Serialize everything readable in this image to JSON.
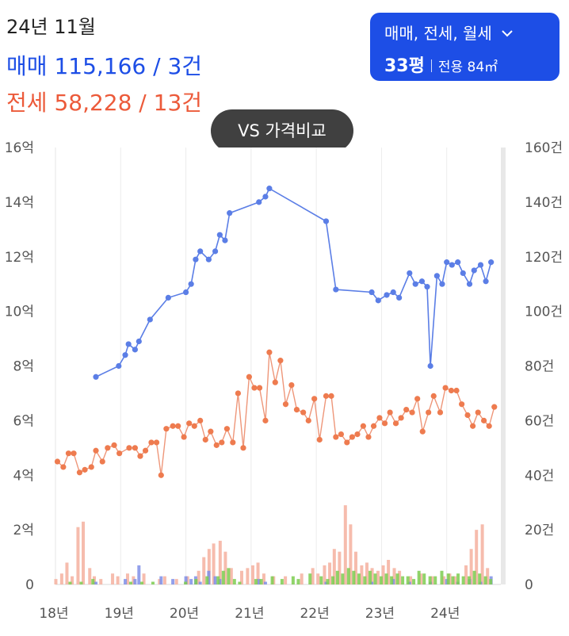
{
  "header": {
    "period": "24년 11월",
    "sale_label": "매매",
    "sale_value": "115,166 / 3건",
    "jeonse_label": "전세",
    "jeonse_value": "58,228 / 13건"
  },
  "filter": {
    "types": "매매, 전세, 월세",
    "size": "33평",
    "exclusive": "전용 84㎡",
    "icon": "chevron-down-icon"
  },
  "compare_button": {
    "label": "VS 가격비교"
  },
  "colors": {
    "sale": "#5b7ee6",
    "jeonse": "#ee9679",
    "jeonse_dot": "#ee7b4f",
    "sale_volume": "#7f8fe8",
    "jeonse_volume": "#f5b5a4",
    "rent_volume": "#7ccc50"
  },
  "chart_data": {
    "type": "line",
    "x_tick_labels": [
      "18년",
      "19년",
      "20년",
      "21년",
      "22년",
      "23년",
      "24년"
    ],
    "x_range": [
      2018.0,
      2024.83
    ],
    "y_left_ticks": [
      "0",
      "2억",
      "4억",
      "6억",
      "8억",
      "10억",
      "12억",
      "14억",
      "16억"
    ],
    "y_left_range": [
      0,
      16
    ],
    "y_right_ticks": [
      "0",
      "20건",
      "40건",
      "60건",
      "80건",
      "100건",
      "120건",
      "140건",
      "160건"
    ],
    "y_right_range": [
      0,
      160
    ],
    "series": [
      {
        "key": "sale",
        "unit": "억",
        "points": [
          [
            2018.62,
            7.6
          ],
          [
            2018.97,
            8.0
          ],
          [
            2019.07,
            8.4
          ],
          [
            2019.12,
            8.8
          ],
          [
            2019.22,
            8.6
          ],
          [
            2019.28,
            8.9
          ],
          [
            2019.45,
            9.7
          ],
          [
            2019.73,
            10.5
          ],
          [
            2020.0,
            10.7
          ],
          [
            2020.08,
            11.0
          ],
          [
            2020.15,
            11.9
          ],
          [
            2020.22,
            12.2
          ],
          [
            2020.35,
            11.9
          ],
          [
            2020.45,
            12.2
          ],
          [
            2020.52,
            12.8
          ],
          [
            2020.6,
            12.6
          ],
          [
            2020.67,
            13.6
          ],
          [
            2021.12,
            14.0
          ],
          [
            2021.22,
            14.2
          ],
          [
            2021.28,
            14.5
          ],
          [
            2022.15,
            13.3
          ],
          [
            2022.3,
            10.8
          ],
          [
            2022.85,
            10.7
          ],
          [
            2022.95,
            10.4
          ],
          [
            2023.08,
            10.6
          ],
          [
            2023.18,
            10.7
          ],
          [
            2023.27,
            10.5
          ],
          [
            2023.43,
            11.4
          ],
          [
            2023.52,
            11.0
          ],
          [
            2023.62,
            11.1
          ],
          [
            2023.7,
            10.9
          ],
          [
            2023.75,
            8.0
          ],
          [
            2023.85,
            11.3
          ],
          [
            2023.93,
            11.0
          ],
          [
            2024.0,
            11.8
          ],
          [
            2024.08,
            11.7
          ],
          [
            2024.17,
            11.8
          ],
          [
            2024.25,
            11.4
          ],
          [
            2024.35,
            11.0
          ],
          [
            2024.42,
            11.5
          ],
          [
            2024.52,
            11.7
          ],
          [
            2024.6,
            11.1
          ],
          [
            2024.68,
            11.8
          ]
        ]
      },
      {
        "key": "jeonse",
        "unit": "억",
        "points": [
          [
            2018.03,
            4.5
          ],
          [
            2018.12,
            4.3
          ],
          [
            2018.2,
            4.8
          ],
          [
            2018.28,
            4.8
          ],
          [
            2018.37,
            4.1
          ],
          [
            2018.45,
            4.2
          ],
          [
            2018.55,
            4.3
          ],
          [
            2018.62,
            4.9
          ],
          [
            2018.72,
            4.5
          ],
          [
            2018.8,
            5.0
          ],
          [
            2018.9,
            5.1
          ],
          [
            2018.98,
            4.8
          ],
          [
            2019.13,
            5.0
          ],
          [
            2019.22,
            5.0
          ],
          [
            2019.3,
            4.7
          ],
          [
            2019.38,
            4.9
          ],
          [
            2019.47,
            5.2
          ],
          [
            2019.55,
            5.2
          ],
          [
            2019.62,
            4.0
          ],
          [
            2019.7,
            5.7
          ],
          [
            2019.8,
            5.8
          ],
          [
            2019.88,
            5.8
          ],
          [
            2019.97,
            5.4
          ],
          [
            2020.05,
            5.9
          ],
          [
            2020.13,
            5.8
          ],
          [
            2020.22,
            6.0
          ],
          [
            2020.3,
            5.3
          ],
          [
            2020.38,
            5.6
          ],
          [
            2020.47,
            5.1
          ],
          [
            2020.55,
            5.2
          ],
          [
            2020.63,
            5.7
          ],
          [
            2020.72,
            5.2
          ],
          [
            2020.8,
            7.0
          ],
          [
            2020.88,
            5.0
          ],
          [
            2020.97,
            7.6
          ],
          [
            2021.05,
            7.2
          ],
          [
            2021.13,
            7.2
          ],
          [
            2021.22,
            6.0
          ],
          [
            2021.28,
            8.5
          ],
          [
            2021.37,
            7.4
          ],
          [
            2021.45,
            8.2
          ],
          [
            2021.53,
            6.6
          ],
          [
            2021.62,
            7.3
          ],
          [
            2021.7,
            6.4
          ],
          [
            2021.8,
            6.3
          ],
          [
            2021.88,
            6.0
          ],
          [
            2021.97,
            6.8
          ],
          [
            2022.05,
            5.3
          ],
          [
            2022.15,
            6.9
          ],
          [
            2022.23,
            6.9
          ],
          [
            2022.3,
            5.4
          ],
          [
            2022.38,
            5.5
          ],
          [
            2022.47,
            5.2
          ],
          [
            2022.55,
            5.4
          ],
          [
            2022.63,
            5.5
          ],
          [
            2022.72,
            5.8
          ],
          [
            2022.8,
            5.4
          ],
          [
            2022.88,
            5.8
          ],
          [
            2022.97,
            6.1
          ],
          [
            2023.05,
            5.9
          ],
          [
            2023.13,
            6.3
          ],
          [
            2023.22,
            5.9
          ],
          [
            2023.3,
            6.1
          ],
          [
            2023.38,
            6.4
          ],
          [
            2023.47,
            6.3
          ],
          [
            2023.55,
            6.8
          ],
          [
            2023.63,
            5.6
          ],
          [
            2023.72,
            6.3
          ],
          [
            2023.8,
            6.9
          ],
          [
            2023.9,
            6.3
          ],
          [
            2023.98,
            7.2
          ],
          [
            2024.07,
            7.1
          ],
          [
            2024.15,
            7.1
          ],
          [
            2024.23,
            6.6
          ],
          [
            2024.32,
            6.2
          ],
          [
            2024.4,
            5.8
          ],
          [
            2024.48,
            6.3
          ],
          [
            2024.57,
            6.0
          ],
          [
            2024.65,
            5.8
          ],
          [
            2024.73,
            6.5
          ]
        ]
      }
    ],
    "volume_series": [
      {
        "key": "jeonse_volume",
        "unit": "건",
        "points": [
          [
            2018.03,
            2
          ],
          [
            2018.12,
            4
          ],
          [
            2018.2,
            8
          ],
          [
            2018.28,
            3
          ],
          [
            2018.37,
            21
          ],
          [
            2018.45,
            23
          ],
          [
            2018.55,
            6
          ],
          [
            2018.62,
            3
          ],
          [
            2018.72,
            2
          ],
          [
            2018.9,
            4
          ],
          [
            2018.98,
            3
          ],
          [
            2019.13,
            4
          ],
          [
            2019.22,
            3
          ],
          [
            2019.38,
            4
          ],
          [
            2019.62,
            2
          ],
          [
            2019.7,
            3
          ],
          [
            2019.88,
            2
          ],
          [
            2020.05,
            3
          ],
          [
            2020.22,
            5
          ],
          [
            2020.3,
            10
          ],
          [
            2020.38,
            13
          ],
          [
            2020.45,
            15
          ],
          [
            2020.55,
            16
          ],
          [
            2020.63,
            12
          ],
          [
            2020.72,
            6
          ],
          [
            2020.88,
            5
          ],
          [
            2020.97,
            6
          ],
          [
            2021.05,
            7
          ],
          [
            2021.13,
            8
          ],
          [
            2021.22,
            4
          ],
          [
            2021.37,
            3
          ],
          [
            2021.55,
            3
          ],
          [
            2021.8,
            4
          ],
          [
            2021.97,
            6
          ],
          [
            2022.05,
            4
          ],
          [
            2022.15,
            7
          ],
          [
            2022.23,
            8
          ],
          [
            2022.3,
            13
          ],
          [
            2022.38,
            12
          ],
          [
            2022.47,
            29
          ],
          [
            2022.55,
            22
          ],
          [
            2022.63,
            12
          ],
          [
            2022.72,
            7
          ],
          [
            2022.8,
            8
          ],
          [
            2022.88,
            6
          ],
          [
            2022.97,
            5
          ],
          [
            2023.05,
            7
          ],
          [
            2023.13,
            9
          ],
          [
            2023.22,
            6
          ],
          [
            2023.3,
            5
          ],
          [
            2023.47,
            3
          ],
          [
            2023.63,
            4
          ],
          [
            2023.8,
            3
          ],
          [
            2023.98,
            3
          ],
          [
            2024.07,
            4
          ],
          [
            2024.15,
            3
          ],
          [
            2024.32,
            7
          ],
          [
            2024.4,
            13
          ],
          [
            2024.48,
            20
          ],
          [
            2024.57,
            22
          ],
          [
            2024.65,
            6
          ]
        ]
      },
      {
        "key": "sale_volume",
        "unit": "건",
        "points": [
          [
            2018.62,
            1
          ],
          [
            2019.07,
            2
          ],
          [
            2019.22,
            2
          ],
          [
            2019.28,
            7
          ],
          [
            2019.62,
            3
          ],
          [
            2019.8,
            2
          ],
          [
            2020.0,
            3
          ],
          [
            2020.08,
            2
          ],
          [
            2020.15,
            3
          ],
          [
            2020.22,
            1
          ],
          [
            2020.35,
            5
          ],
          [
            2020.45,
            3
          ],
          [
            2020.52,
            2
          ],
          [
            2021.12,
            2
          ],
          [
            2021.22,
            1
          ],
          [
            2022.15,
            1
          ],
          [
            2022.85,
            1
          ],
          [
            2023.18,
            2
          ],
          [
            2023.43,
            1
          ],
          [
            2023.75,
            1
          ],
          [
            2024.0,
            2
          ],
          [
            2024.17,
            1
          ],
          [
            2024.35,
            2
          ],
          [
            2024.52,
            1
          ],
          [
            2024.68,
            3
          ]
        ]
      },
      {
        "key": "rent_volume",
        "unit": "건",
        "points": [
          [
            2018.2,
            1
          ],
          [
            2018.37,
            1
          ],
          [
            2018.55,
            2
          ],
          [
            2019.13,
            1
          ],
          [
            2019.3,
            1
          ],
          [
            2019.47,
            1
          ],
          [
            2019.97,
            1
          ],
          [
            2020.13,
            2
          ],
          [
            2020.3,
            3
          ],
          [
            2020.47,
            3
          ],
          [
            2020.55,
            5
          ],
          [
            2020.63,
            6
          ],
          [
            2020.72,
            2
          ],
          [
            2020.8,
            1
          ],
          [
            2021.05,
            2
          ],
          [
            2021.13,
            2
          ],
          [
            2021.3,
            3
          ],
          [
            2021.45,
            2
          ],
          [
            2021.62,
            3
          ],
          [
            2021.7,
            2
          ],
          [
            2021.88,
            4
          ],
          [
            2022.05,
            3
          ],
          [
            2022.15,
            2
          ],
          [
            2022.23,
            3
          ],
          [
            2022.3,
            5
          ],
          [
            2022.38,
            4
          ],
          [
            2022.47,
            6
          ],
          [
            2022.55,
            5
          ],
          [
            2022.63,
            4
          ],
          [
            2022.72,
            3
          ],
          [
            2022.8,
            5
          ],
          [
            2022.88,
            4
          ],
          [
            2022.97,
            3
          ],
          [
            2023.05,
            4
          ],
          [
            2023.13,
            3
          ],
          [
            2023.22,
            4
          ],
          [
            2023.3,
            3
          ],
          [
            2023.38,
            3
          ],
          [
            2023.47,
            2
          ],
          [
            2023.55,
            5
          ],
          [
            2023.63,
            4
          ],
          [
            2023.72,
            3
          ],
          [
            2023.8,
            3
          ],
          [
            2023.9,
            5
          ],
          [
            2024.0,
            4
          ],
          [
            2024.07,
            3
          ],
          [
            2024.15,
            4
          ],
          [
            2024.23,
            3
          ],
          [
            2024.32,
            3
          ],
          [
            2024.4,
            5
          ],
          [
            2024.48,
            4
          ],
          [
            2024.57,
            3
          ],
          [
            2024.65,
            2
          ]
        ]
      }
    ],
    "grid": {
      "vertical": true,
      "horizontal": false
    }
  }
}
